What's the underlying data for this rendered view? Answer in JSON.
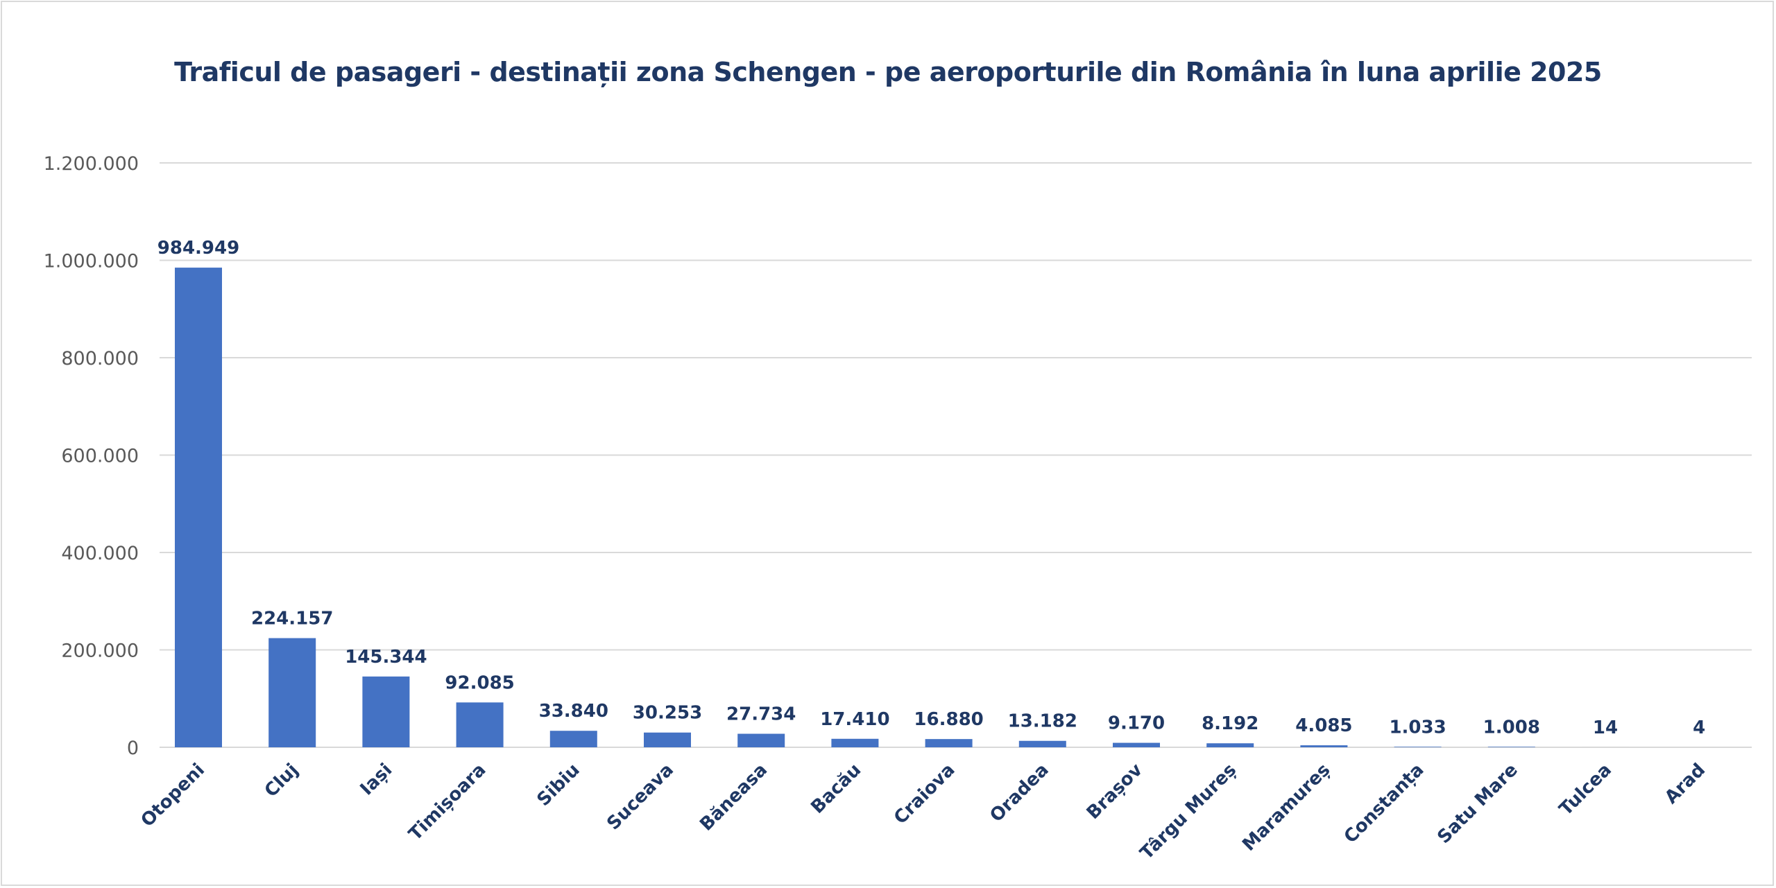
{
  "chart_data": {
    "type": "bar",
    "title": "Traficul de pasageri - destinații zona Schengen - pe aeroporturile din România în luna aprilie 2025",
    "xlabel": "",
    "ylabel": "",
    "categories": [
      "Otopeni",
      "Cluj",
      "Iași",
      "Timișoara",
      "Sibiu",
      "Suceava",
      "Băneasa",
      "Bacău",
      "Craiova",
      "Oradea",
      "Brașov",
      "Târgu Mureș",
      "Maramureș",
      "Constanța",
      "Satu Mare",
      "Tulcea",
      "Arad"
    ],
    "values": [
      984949,
      224157,
      145344,
      92085,
      33840,
      30253,
      27734,
      17410,
      16880,
      13182,
      9170,
      8192,
      4085,
      1033,
      1008,
      14,
      4
    ],
    "data_labels": [
      "984.949",
      "224.157",
      "145.344",
      "92.085",
      "33.840",
      "30.253",
      "27.734",
      "17.410",
      "16.880",
      "13.182",
      "9.170",
      "8.192",
      "4.085",
      "1.033",
      "1.008",
      "14",
      "4"
    ],
    "ylim": [
      0,
      1200000
    ],
    "yticks": [
      0,
      200000,
      400000,
      600000,
      800000,
      1000000,
      1200000
    ],
    "ytick_labels": [
      "0",
      "200.000",
      "400.000",
      "600.000",
      "800.000",
      "1.000.000",
      "1.200.000"
    ],
    "grid": true,
    "legend": "none",
    "colors": {
      "bar": "#4472c4",
      "text": "#1f3864",
      "grid": "#d9d9d9",
      "axis_text": "#595959"
    }
  }
}
